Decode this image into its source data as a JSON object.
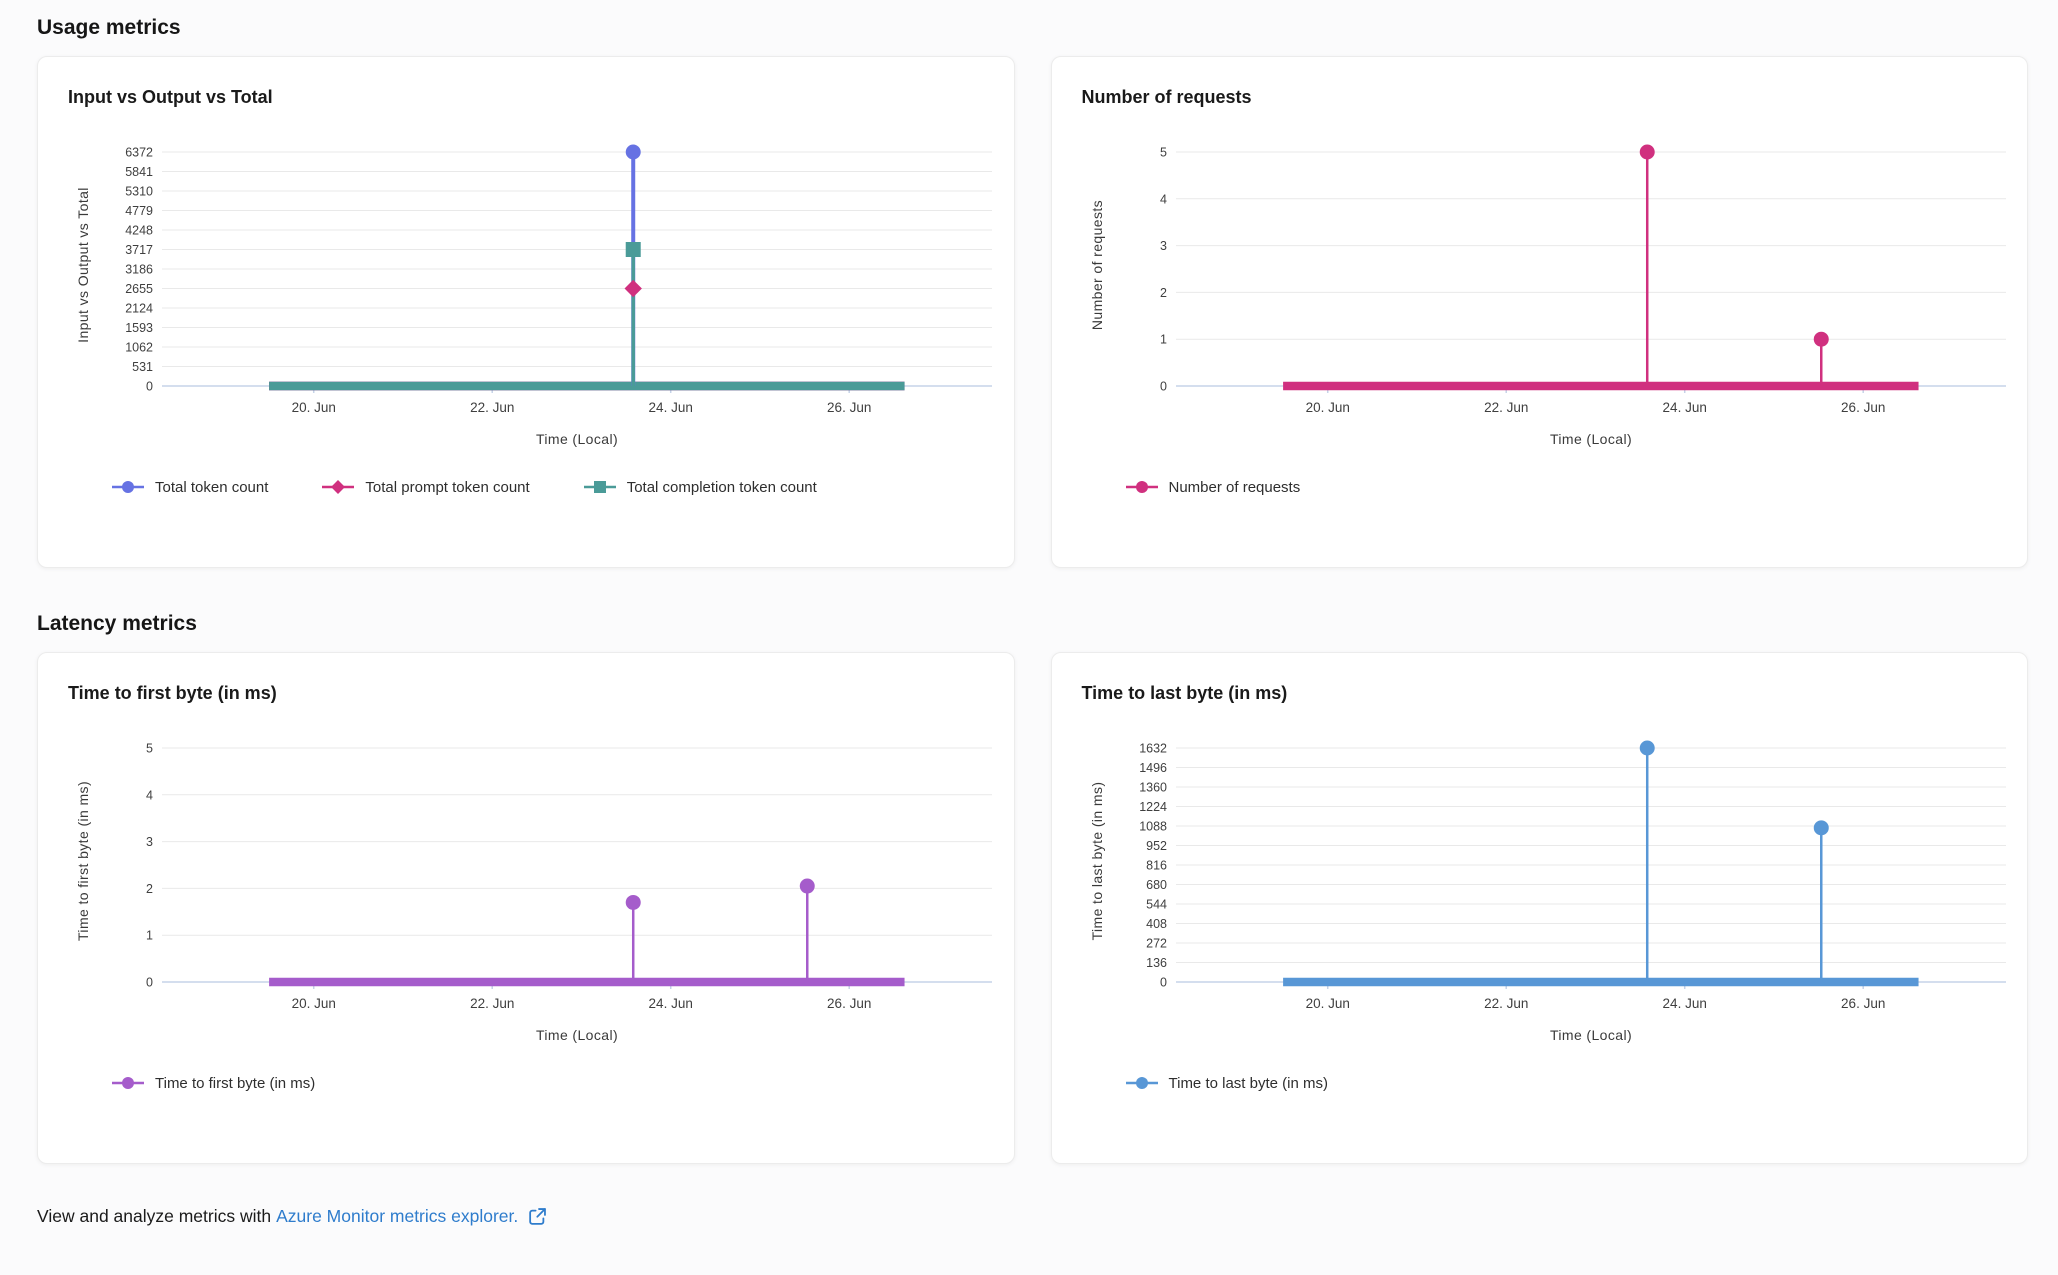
{
  "sections": [
    {
      "title": "Usage metrics"
    },
    {
      "title": "Latency metrics"
    }
  ],
  "footer": {
    "text": "View and analyze metrics with",
    "link_label": "Azure Monitor metrics explorer.",
    "link_color": "#2e7ccc",
    "external_link_icon": "external-link-icon"
  },
  "colors": {
    "grid": "#e9e9e9",
    "axis": "#c5d3e8",
    "tick_text": "#3f3f3f",
    "total_tokens": "#6672e3",
    "prompt_tokens": "#d0307f",
    "completion_tokens": "#4a9b98",
    "requests": "#d0307f",
    "first_byte": "#a55ccb",
    "last_byte": "#5897d6"
  },
  "chart_data": [
    {
      "type": "line",
      "title": "Input vs Output vs Total",
      "xlabel": "Time (Local)",
      "ylabel": "Input vs Output vs Total",
      "x_unit": "day of June (local time)",
      "x_domain": [
        18.3,
        27.6
      ],
      "x_ticks": [
        {
          "v": 20,
          "label": "20. Jun"
        },
        {
          "v": 22,
          "label": "22. Jun"
        },
        {
          "v": 24,
          "label": "24. Jun"
        },
        {
          "v": 26,
          "label": "26. Jun"
        }
      ],
      "y_ticks": [
        0,
        531,
        1062,
        1593,
        2124,
        2655,
        3186,
        3717,
        4248,
        4779,
        5310,
        5841,
        6372
      ],
      "ylim": [
        0,
        6372
      ],
      "grid": true,
      "legend_position": "bottom",
      "baseline": {
        "x0": 19.5,
        "x1": 26.62,
        "y": 0
      },
      "series": [
        {
          "name": "Total token count",
          "color": "#6672e3",
          "marker": "circle",
          "spikes": [
            {
              "x": 23.58,
              "y": 6372,
              "w": 4
            }
          ]
        },
        {
          "name": "Total prompt token count",
          "color": "#d0307f",
          "marker": "diamond",
          "spikes": [
            {
              "x": 23.58,
              "y": 2655,
              "line": false
            }
          ]
        },
        {
          "name": "Total completion token count",
          "color": "#4a9b98",
          "marker": "square",
          "spikes": [
            {
              "x": 23.58,
              "y": 3717,
              "w": 3.5
            }
          ]
        }
      ]
    },
    {
      "type": "line",
      "title": "Number of requests",
      "xlabel": "Time (Local)",
      "ylabel": "Number of requests",
      "x_unit": "day of June (local time)",
      "x_domain": [
        18.3,
        27.6
      ],
      "x_ticks": [
        {
          "v": 20,
          "label": "20. Jun"
        },
        {
          "v": 22,
          "label": "22. Jun"
        },
        {
          "v": 24,
          "label": "24. Jun"
        },
        {
          "v": 26,
          "label": "26. Jun"
        }
      ],
      "y_ticks": [
        0,
        1,
        2,
        3,
        4,
        5
      ],
      "ylim": [
        0,
        5
      ],
      "grid": true,
      "legend_position": "bottom",
      "baseline": {
        "x0": 19.5,
        "x1": 26.62,
        "y": 0
      },
      "series": [
        {
          "name": "Number of requests",
          "color": "#d0307f",
          "marker": "circle",
          "spikes": [
            {
              "x": 23.58,
              "y": 5,
              "w": 2.5
            },
            {
              "x": 25.53,
              "y": 1,
              "w": 2.5
            }
          ]
        }
      ]
    },
    {
      "type": "line",
      "title": "Time to first byte (in ms)",
      "xlabel": "Time (Local)",
      "ylabel": "Time to first byte (in ms)",
      "x_unit": "day of June (local time)",
      "x_domain": [
        18.3,
        27.6
      ],
      "x_ticks": [
        {
          "v": 20,
          "label": "20. Jun"
        },
        {
          "v": 22,
          "label": "22. Jun"
        },
        {
          "v": 24,
          "label": "24. Jun"
        },
        {
          "v": 26,
          "label": "26. Jun"
        }
      ],
      "y_ticks": [
        0,
        1,
        2,
        3,
        4,
        5
      ],
      "ylim": [
        0,
        5
      ],
      "grid": true,
      "legend_position": "bottom",
      "baseline": {
        "x0": 19.5,
        "x1": 26.62,
        "y": 0
      },
      "series": [
        {
          "name": "Time to first byte (in ms)",
          "color": "#a55ccb",
          "marker": "circle",
          "spikes": [
            {
              "x": 23.58,
              "y": 1.7,
              "w": 2.5
            },
            {
              "x": 25.53,
              "y": 2.05,
              "w": 2.5
            }
          ]
        }
      ]
    },
    {
      "type": "line",
      "title": "Time to last byte (in ms)",
      "xlabel": "Time (Local)",
      "ylabel": "Time to last byte (in ms)",
      "x_unit": "day of June (local time)",
      "x_domain": [
        18.3,
        27.6
      ],
      "x_ticks": [
        {
          "v": 20,
          "label": "20. Jun"
        },
        {
          "v": 22,
          "label": "22. Jun"
        },
        {
          "v": 24,
          "label": "24. Jun"
        },
        {
          "v": 26,
          "label": "26. Jun"
        }
      ],
      "y_ticks": [
        0,
        136,
        272,
        408,
        544,
        680,
        816,
        952,
        1088,
        1224,
        1360,
        1496,
        1632
      ],
      "ylim": [
        0,
        1632
      ],
      "grid": true,
      "legend_position": "bottom",
      "baseline": {
        "x0": 19.5,
        "x1": 26.62,
        "y": 0
      },
      "series": [
        {
          "name": "Time to last byte (in ms)",
          "color": "#5897d6",
          "marker": "circle",
          "spikes": [
            {
              "x": 23.58,
              "y": 1632,
              "w": 2.5
            },
            {
              "x": 25.53,
              "y": 1075,
              "w": 2.5
            }
          ]
        }
      ]
    }
  ]
}
